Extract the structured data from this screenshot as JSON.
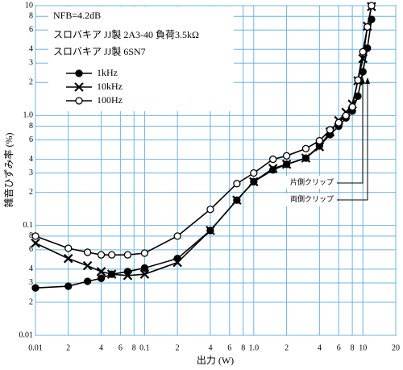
{
  "chart_data": {
    "type": "line",
    "notes": [
      "NFB=4.2dB",
      "スロバキア JJ製 2A3-40 負荷3.5kΩ",
      "スロバキア JJ製 6SN7"
    ],
    "x_label": "出力 (W)",
    "y_label": "雑音ひずみ率 (%)",
    "annotations": [
      "片側クリップ",
      "両側クリップ"
    ],
    "x_log": true,
    "y_log": true,
    "grid": true,
    "grid_color": "#6cb4de",
    "x": [
      0.01,
      0.02,
      0.03,
      0.04,
      0.05,
      0.07,
      0.1,
      0.2,
      0.4,
      0.7,
      1,
      1.5,
      2,
      3,
      4,
      5,
      6,
      7,
      8,
      9,
      10,
      11,
      12
    ],
    "series": [
      {
        "name": "1kHz",
        "color": "#000000",
        "marker": "filled-circle",
        "values": [
          0.027,
          0.028,
          0.031,
          0.033,
          0.036,
          0.038,
          0.041,
          0.05,
          0.09,
          0.17,
          0.25,
          0.32,
          0.36,
          0.41,
          0.53,
          0.67,
          0.8,
          0.95,
          1.1,
          1.5,
          2.5,
          4.1,
          7.5
        ]
      },
      {
        "name": "10kHz",
        "color": "#000000",
        "marker": "x",
        "values": [
          0.069,
          0.05,
          0.043,
          0.038,
          0.036,
          0.035,
          0.036,
          0.046,
          0.09,
          0.17,
          0.25,
          0.33,
          0.36,
          0.41,
          0.52,
          0.71,
          0.9,
          1.07,
          1.27,
          2.07,
          3.3,
          6.5,
          9.8
        ]
      },
      {
        "name": "100Hz",
        "color": "#000000",
        "marker": "open-circle",
        "values": [
          0.08,
          0.062,
          0.057,
          0.054,
          0.054,
          0.054,
          0.056,
          0.08,
          0.14,
          0.24,
          0.3,
          0.4,
          0.43,
          0.5,
          0.59,
          0.74,
          0.86,
          1.0,
          1.2,
          2.1,
          3.8,
          6.4,
          10
        ]
      }
    ],
    "xlim": [
      0.01,
      20
    ],
    "ylim": [
      0.01,
      10
    ],
    "xticks": [
      0.01,
      {
        "value": 0.02,
        "label": "2"
      },
      {
        "value": 0.04,
        "label": "4"
      },
      {
        "value": 0.06,
        "label": "6"
      },
      {
        "value": 0.08,
        "label": "8"
      },
      0.1,
      {
        "value": 0.2,
        "label": "2"
      },
      {
        "value": 0.4,
        "label": "4"
      },
      {
        "value": 0.6,
        "label": "6"
      },
      {
        "value": 0.8,
        "label": "8"
      },
      {
        "value": 1,
        "label": "1.0"
      },
      {
        "value": 2,
        "label": "2"
      },
      {
        "value": 4,
        "label": "4"
      },
      {
        "value": 6,
        "label": "6"
      },
      {
        "value": 8,
        "label": "8"
      },
      10,
      20
    ],
    "yticks": [
      0.01,
      {
        "value": 0.02,
        "label": "2"
      },
      {
        "value": 0.03,
        "label": "3"
      },
      {
        "value": 0.04,
        "label": "4"
      },
      {
        "value": 0.06,
        "label": "6"
      },
      {
        "value": 0.08,
        "label": "8"
      },
      0.1,
      {
        "value": 0.2,
        "label": "2"
      },
      {
        "value": 0.3,
        "label": "3"
      },
      {
        "value": 0.4,
        "label": "4"
      },
      {
        "value": 0.6,
        "label": "6"
      },
      {
        "value": 0.8,
        "label": "8"
      },
      {
        "value": 1,
        "label": "1.0"
      },
      {
        "value": 2,
        "label": "2"
      },
      {
        "value": 3,
        "label": "3"
      },
      {
        "value": 4,
        "label": "4"
      },
      {
        "value": 6,
        "label": "6"
      },
      {
        "value": 8,
        "label": "8"
      },
      10
    ]
  }
}
